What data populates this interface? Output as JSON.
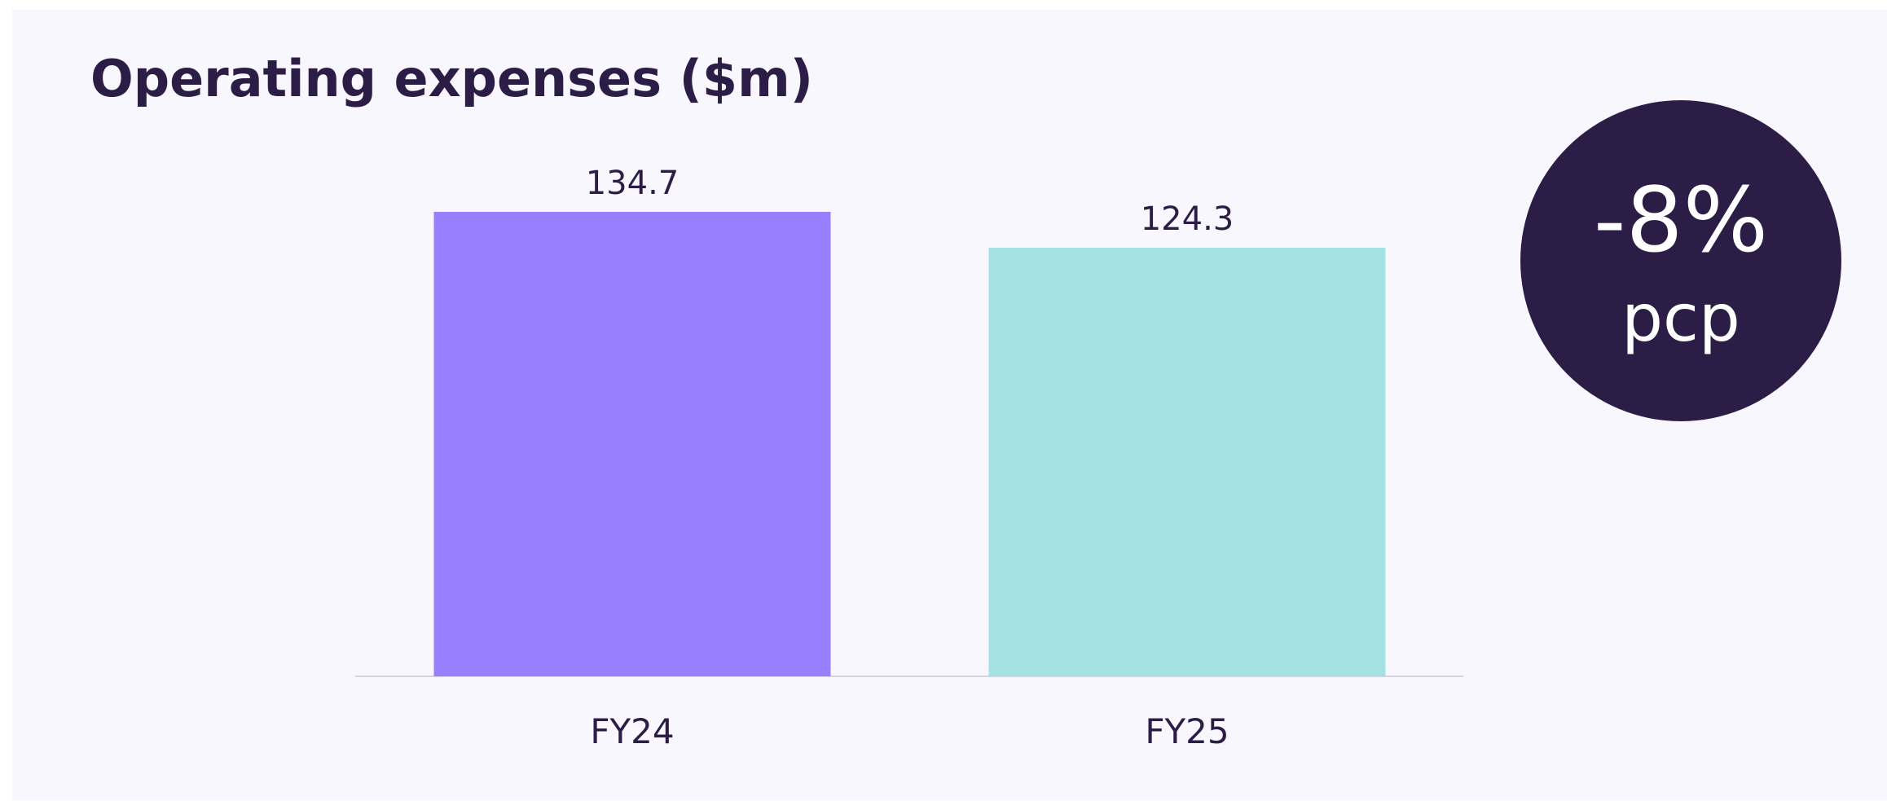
{
  "chart_data": {
    "type": "bar",
    "title": "Operating expenses ($m)",
    "categories": [
      "FY24",
      "FY25"
    ],
    "values": [
      134.7,
      124.3
    ],
    "colors": [
      "#977ffe",
      "#a3e1e2"
    ],
    "annotations": [
      "-8%",
      "pcp"
    ]
  }
}
